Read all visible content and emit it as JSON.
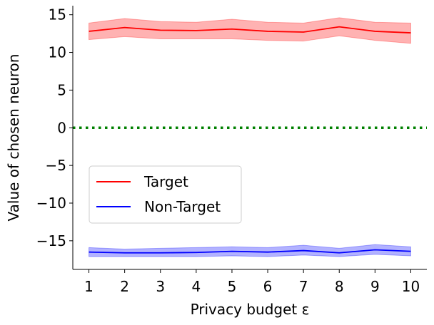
{
  "chart_data": {
    "type": "line",
    "title": "",
    "xlabel": "Privacy budget ε",
    "ylabel": "Value of chosen neuron",
    "x": [
      1,
      2,
      3,
      4,
      5,
      6,
      7,
      8,
      9,
      10
    ],
    "xlim": [
      0.55,
      10.45
    ],
    "ylim": [
      -18.8,
      16.2
    ],
    "yticks": [
      -15,
      -10,
      -5,
      0,
      5,
      10,
      15
    ],
    "ytick_labels": [
      "−15",
      "−10",
      "−5",
      "0",
      "5",
      "10",
      "15"
    ],
    "xtick_labels": [
      "1",
      "2",
      "3",
      "4",
      "5",
      "6",
      "7",
      "8",
      "9",
      "10"
    ],
    "grid": false,
    "legend": {
      "placement": "center-left"
    },
    "reference_line": {
      "y": 0,
      "color": "#008000",
      "style": "dotted"
    },
    "series": [
      {
        "name": "Target",
        "color": "#ff0000",
        "band_color": "#ff0000",
        "values": [
          12.8,
          13.3,
          12.95,
          12.9,
          13.1,
          12.8,
          12.7,
          13.4,
          12.8,
          12.6
        ],
        "lower": [
          11.7,
          12.1,
          11.8,
          11.8,
          11.8,
          11.6,
          11.5,
          12.2,
          11.6,
          11.2
        ],
        "upper": [
          13.9,
          14.5,
          14.1,
          14.0,
          14.4,
          14.0,
          13.9,
          14.6,
          14.0,
          13.9
        ]
      },
      {
        "name": "Non-Target",
        "color": "#0000ff",
        "band_color": "#0000ff",
        "values": [
          -16.5,
          -16.6,
          -16.6,
          -16.55,
          -16.4,
          -16.5,
          -16.3,
          -16.6,
          -16.2,
          -16.4
        ],
        "lower": [
          -17.1,
          -17.1,
          -17.1,
          -17.1,
          -17.0,
          -17.1,
          -16.9,
          -17.1,
          -16.8,
          -17.0
        ],
        "upper": [
          -15.9,
          -16.1,
          -16.0,
          -15.9,
          -15.8,
          -15.9,
          -15.6,
          -16.0,
          -15.5,
          -15.8
        ]
      }
    ]
  }
}
